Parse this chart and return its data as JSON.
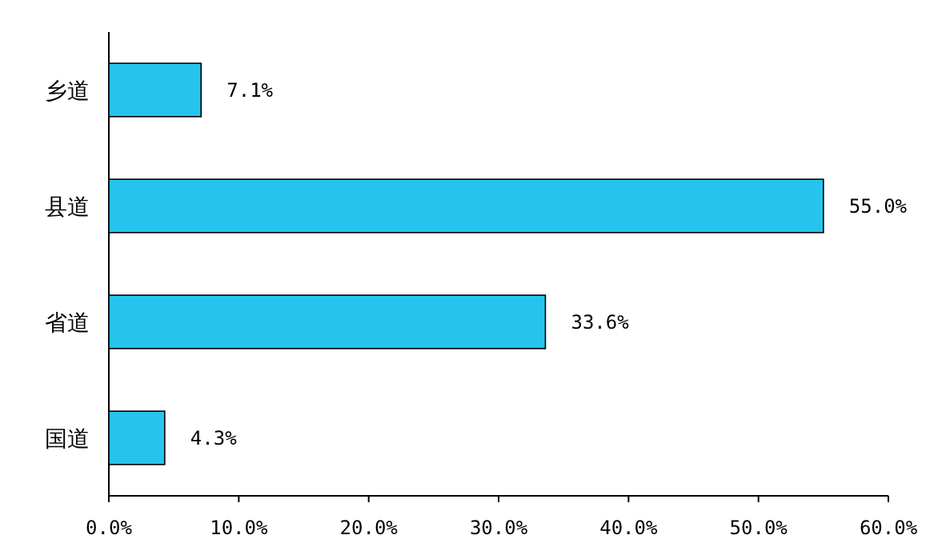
{
  "chart_data": {
    "type": "bar",
    "orientation": "horizontal",
    "categories": [
      "乡道",
      "县道",
      "省道",
      "国道"
    ],
    "values": [
      7.1,
      55.0,
      33.6,
      4.3
    ],
    "value_labels": [
      "7.1%",
      "55.0%",
      "33.6%",
      "4.3%"
    ],
    "color": "#26c4ec",
    "xlim": [
      0,
      60
    ],
    "xticks": [
      {
        "value": 0,
        "label": "0.0%"
      },
      {
        "value": 10,
        "label": "10.0%"
      },
      {
        "value": 20,
        "label": "20.0%"
      },
      {
        "value": 30,
        "label": "30.0%"
      },
      {
        "value": 40,
        "label": "40.0%"
      },
      {
        "value": 50,
        "label": "50.0%"
      },
      {
        "value": 60,
        "label": "60.0%"
      }
    ],
    "grid": false
  }
}
